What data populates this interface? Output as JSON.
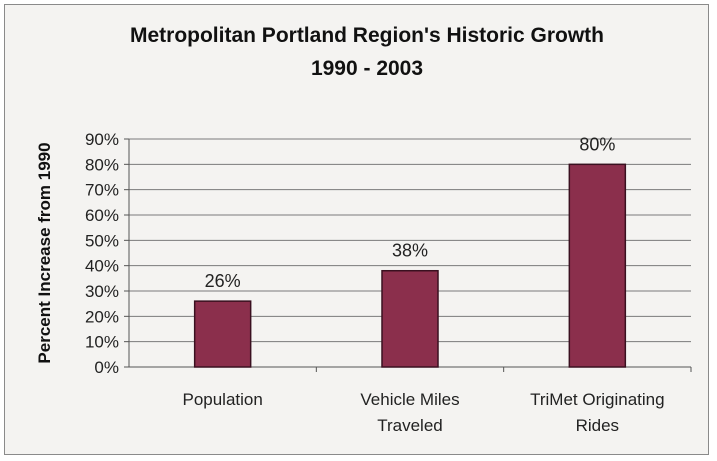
{
  "chart_data": {
    "type": "bar",
    "title_lines": [
      "Metropolitan Portland Region's Historic Growth",
      "1990 - 2003"
    ],
    "ylabel": "Percent Increase from 1990",
    "xlabel": "",
    "categories": [
      [
        "Population"
      ],
      [
        "Vehicle Miles",
        "Traveled"
      ],
      [
        "TriMet Originating",
        "Rides"
      ]
    ],
    "values": [
      26,
      38,
      80
    ],
    "data_labels": [
      "26%",
      "38%",
      "80%"
    ],
    "ylim": [
      0,
      90
    ],
    "ytick_step": 10,
    "ytick_suffix": "%",
    "grid": true,
    "legend": "none",
    "colors": {
      "bar": "#8b2f4c",
      "bar_edge": "#3a1020",
      "grid": "#7a7a7a",
      "background": "#f4f3f1"
    }
  }
}
